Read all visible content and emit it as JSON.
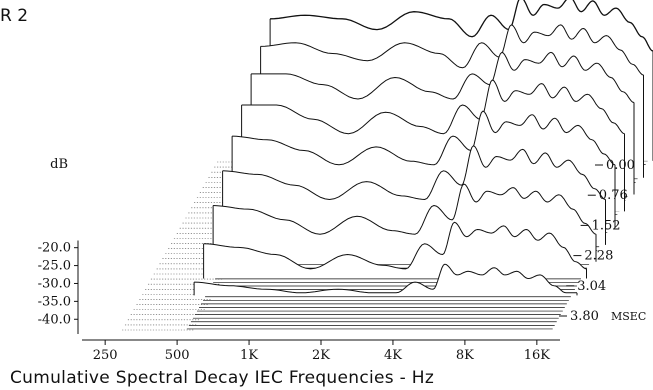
{
  "figure": {
    "corner_label": "R 2",
    "caption": "Cumulative Spectral Decay IEC Frequencies - Hz"
  },
  "chart_data": {
    "type": "waterfall",
    "title": "",
    "xlabel": "Cumulative Spectral Decay IEC Frequencies - Hz",
    "ylabel": "dB",
    "zlabel": "MSEC",
    "x_ticks": [
      "250",
      "500",
      "1K",
      "2K",
      "4K",
      "8K",
      "16K"
    ],
    "x_tick_hz": [
      250,
      500,
      1000,
      2000,
      4000,
      8000,
      16000
    ],
    "xlim_hz": [
      200,
      20000
    ],
    "y_ticks": [
      "-20.0",
      "-25.0",
      "-30.0",
      "-35.0",
      "-40.0"
    ],
    "y_tick_values": [
      -20,
      -25,
      -30,
      -35,
      -40
    ],
    "ylim": [
      -43,
      0
    ],
    "z_ticks": [
      "0.00",
      "0.76",
      "1.52",
      "2.28",
      "3.04",
      "3.80"
    ],
    "z_tick_values": [
      0.0,
      0.76,
      1.52,
      2.28,
      3.04,
      3.8
    ],
    "z_unit_label": "MSEC",
    "series": [
      {
        "time_ms": 0.0,
        "freq_hz": [
          500,
          700,
          1000,
          1400,
          2000,
          2800,
          3500,
          4200,
          5000,
          5600,
          6300,
          7000,
          8000,
          9000,
          10000,
          11200,
          12500,
          14000,
          16000,
          18000,
          20000
        ],
        "db": [
          -3,
          -2,
          -3,
          -6,
          -1,
          -3,
          -8,
          -2,
          -6,
          3,
          -2,
          1,
          0,
          3,
          -1,
          2,
          -2,
          0,
          -4,
          -8,
          -12
        ]
      },
      {
        "time_ms": 0.38,
        "freq_hz": [
          500,
          700,
          1000,
          1400,
          2000,
          2800,
          3500,
          4200,
          5000,
          5600,
          6300,
          7000,
          8000,
          9000,
          10000,
          11200,
          12500,
          14000,
          16000,
          18000,
          20000
        ],
        "db": [
          -6,
          -5,
          -8,
          -10,
          -5,
          -8,
          -12,
          -5,
          -9,
          0,
          -5,
          -2,
          -3,
          0,
          -4,
          -1,
          -5,
          -3,
          -7,
          -11,
          -14
        ]
      },
      {
        "time_ms": 0.76,
        "freq_hz": [
          500,
          700,
          1000,
          1400,
          2000,
          2800,
          3500,
          4200,
          5000,
          5600,
          6300,
          7000,
          8000,
          9000,
          10000,
          11200,
          12500,
          14000,
          16000,
          18000,
          20000
        ],
        "db": [
          -9,
          -9,
          -12,
          -16,
          -10,
          -14,
          -16,
          -9,
          -12,
          -3,
          -8,
          -5,
          -6,
          -3,
          -7,
          -4,
          -8,
          -6,
          -10,
          -14,
          -17
        ]
      },
      {
        "time_ms": 1.14,
        "freq_hz": [
          500,
          700,
          1000,
          1400,
          2000,
          2800,
          3500,
          4200,
          5000,
          5600,
          6300,
          7000,
          8000,
          9000,
          10000,
          11200,
          12500,
          14000,
          16000,
          18000,
          20000
        ],
        "db": [
          -13,
          -13,
          -17,
          -21,
          -15,
          -19,
          -21,
          -13,
          -17,
          -6,
          -12,
          -9,
          -10,
          -7,
          -11,
          -8,
          -12,
          -10,
          -14,
          -18,
          -21
        ]
      },
      {
        "time_ms": 1.52,
        "freq_hz": [
          500,
          700,
          1000,
          1400,
          2000,
          2800,
          3500,
          4200,
          5000,
          5600,
          6300,
          7000,
          8000,
          9000,
          10000,
          11200,
          12500,
          14000,
          16000,
          18000,
          20000
        ],
        "db": [
          -17,
          -18,
          -21,
          -25,
          -20,
          -24,
          -25,
          -17,
          -21,
          -10,
          -16,
          -13,
          -14,
          -11,
          -15,
          -12,
          -16,
          -14,
          -18,
          -22,
          -25
        ]
      },
      {
        "time_ms": 1.9,
        "freq_hz": [
          500,
          700,
          1000,
          1400,
          2000,
          2800,
          3500,
          4200,
          5000,
          5600,
          6300,
          7000,
          8000,
          9000,
          10000,
          11200,
          12500,
          14000,
          16000,
          18000,
          20000
        ],
        "db": [
          -22,
          -23,
          -26,
          -30,
          -25,
          -29,
          -30,
          -22,
          -26,
          -15,
          -21,
          -18,
          -19,
          -16,
          -20,
          -17,
          -21,
          -19,
          -23,
          -27,
          -30
        ]
      },
      {
        "time_ms": 2.28,
        "freq_hz": [
          500,
          700,
          1000,
          1400,
          2000,
          2800,
          3500,
          4200,
          5000,
          5600,
          6300,
          7000,
          8000,
          9000,
          10000,
          11200,
          12500,
          14000,
          16000,
          18000,
          20000
        ],
        "db": [
          -27,
          -28,
          -31,
          -35,
          -30,
          -34,
          -35,
          -27,
          -31,
          -21,
          -26,
          -23,
          -24,
          -22,
          -25,
          -23,
          -26,
          -24,
          -28,
          -32,
          -35
        ]
      },
      {
        "time_ms": 2.66,
        "freq_hz": [
          500,
          700,
          1000,
          1400,
          2000,
          2800,
          3500,
          4200,
          5000,
          5600,
          6300,
          7000,
          8000,
          9000,
          10000,
          11200,
          12500,
          14000,
          16000,
          18000,
          20000
        ],
        "db": [
          -33,
          -34,
          -36,
          -40,
          -36,
          -39,
          -40,
          -33,
          -36,
          -27,
          -31,
          -29,
          -30,
          -28,
          -31,
          -29,
          -32,
          -30,
          -34,
          -38,
          -40
        ]
      },
      {
        "time_ms": 3.04,
        "freq_hz": [
          500,
          700,
          1000,
          1400,
          2000,
          2800,
          3500,
          4200,
          5000,
          5600,
          6300,
          7000,
          8000,
          9000,
          10000,
          11200,
          12500,
          14000,
          16000,
          18000,
          20000
        ],
        "db": [
          -39,
          -40,
          -41,
          -42,
          -41,
          -42,
          -42,
          -39,
          -41,
          -34,
          -37,
          -36,
          -37,
          -35,
          -37,
          -36,
          -38,
          -37,
          -40,
          -42,
          -42
        ]
      }
    ]
  }
}
